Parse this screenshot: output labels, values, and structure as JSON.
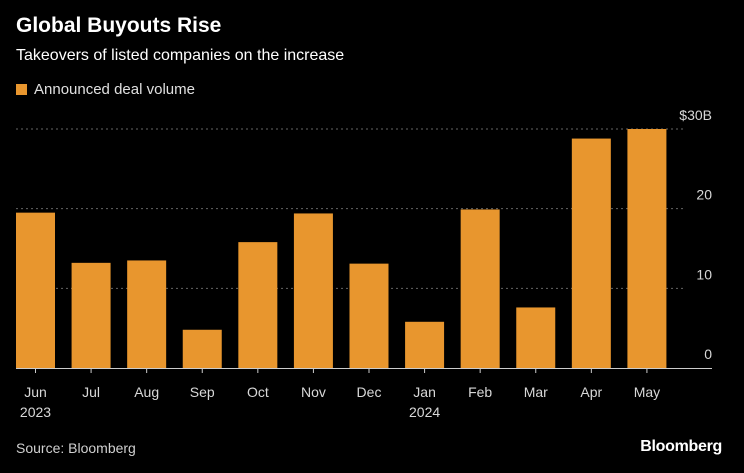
{
  "title": "Global Buyouts Rise",
  "subtitle": "Takeovers of listed companies on the increase",
  "source": "Source: Bloomberg",
  "brand": "Bloomberg",
  "colors": {
    "bar": "#e8962e",
    "background": "#000000",
    "grid": "#666666",
    "text": "#d8d8d8"
  },
  "chart_data": {
    "type": "bar",
    "title": "Global Buyouts Rise",
    "subtitle": "Takeovers of listed companies on the increase",
    "categories": [
      "Jun",
      "Jul",
      "Aug",
      "Sep",
      "Oct",
      "Nov",
      "Dec",
      "Jan",
      "Feb",
      "Mar",
      "Apr",
      "May"
    ],
    "category_sublabels": [
      "2023",
      "",
      "",
      "",
      "",
      "",
      "",
      "2024",
      "",
      "",
      "",
      ""
    ],
    "series": [
      {
        "name": "Announced deal volume",
        "values": [
          19.5,
          13.2,
          13.5,
          4.8,
          15.8,
          19.4,
          13.1,
          5.8,
          19.9,
          7.6,
          28.8,
          30.0
        ]
      }
    ],
    "yticks": [
      0,
      10,
      20,
      30
    ],
    "ytick_labels": [
      "0",
      "10",
      "20",
      "$30B"
    ],
    "ylim": [
      0,
      30
    ],
    "grid": true,
    "y_axis_side": "right",
    "legend_position": "top-left"
  }
}
